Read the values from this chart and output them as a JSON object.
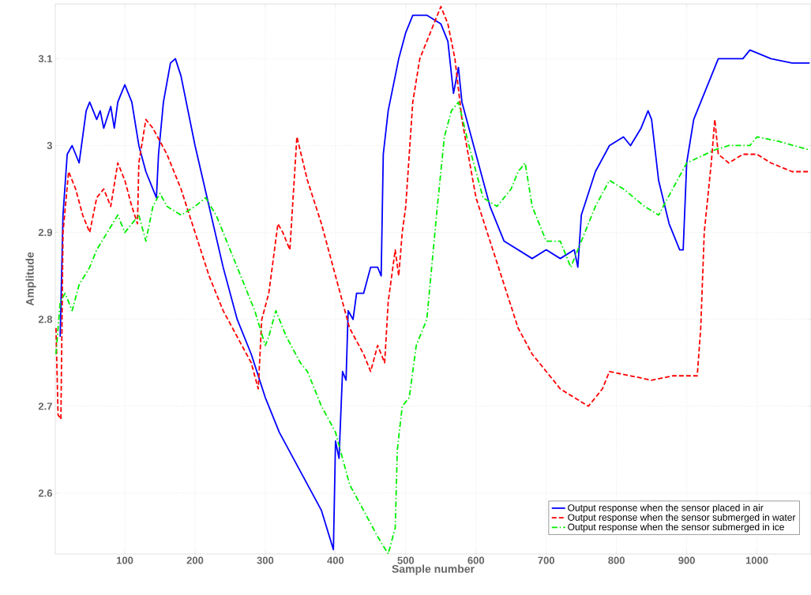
{
  "chart_data": {
    "type": "line",
    "xlabel": "Sample number",
    "ylabel": "Amplitude",
    "xlim": [
      1,
      1077
    ],
    "ylim": [
      2.53,
      3.163
    ],
    "xticks": [
      100,
      200,
      300,
      400,
      500,
      600,
      700,
      800,
      900,
      1000
    ],
    "yticks": [
      2.6,
      2.7,
      2.8,
      2.9,
      3,
      3.1
    ],
    "grid": true,
    "legend": "bottom right",
    "marker": "none",
    "series": [
      {
        "name": "Output response when the sensor placed in air",
        "color": "#0000ff",
        "line_style": "solid",
        "x": [
          8,
          12,
          18,
          25,
          35,
          45,
          50,
          60,
          65,
          70,
          80,
          85,
          90,
          100,
          110,
          120,
          130,
          145,
          148,
          155,
          165,
          172,
          180,
          200,
          220,
          240,
          260,
          280,
          300,
          320,
          340,
          360,
          380,
          397,
          400,
          405,
          410,
          415,
          418,
          425,
          430,
          440,
          450,
          460,
          465,
          468,
          475,
          490,
          500,
          510,
          530,
          550,
          560,
          568,
          575,
          580,
          600,
          620,
          640,
          660,
          680,
          700,
          720,
          740,
          745,
          750,
          770,
          790,
          810,
          820,
          835,
          845,
          850,
          860,
          875,
          890,
          895,
          900,
          910,
          920,
          930,
          945,
          980,
          990,
          1020,
          1050,
          1075
        ],
        "values": [
          2.78,
          2.92,
          2.99,
          3.0,
          2.98,
          3.04,
          3.05,
          3.03,
          3.04,
          3.02,
          3.045,
          3.02,
          3.05,
          3.07,
          3.05,
          3.0,
          2.97,
          2.94,
          2.99,
          3.05,
          3.095,
          3.1,
          3.08,
          3.0,
          2.93,
          2.86,
          2.8,
          2.76,
          2.71,
          2.67,
          2.64,
          2.61,
          2.58,
          2.535,
          2.66,
          2.64,
          2.74,
          2.73,
          2.81,
          2.8,
          2.83,
          2.83,
          2.86,
          2.86,
          2.85,
          2.99,
          3.04,
          3.1,
          3.13,
          3.15,
          3.15,
          3.14,
          3.12,
          3.06,
          3.09,
          3.05,
          2.99,
          2.93,
          2.89,
          2.88,
          2.87,
          2.88,
          2.87,
          2.88,
          2.86,
          2.92,
          2.97,
          3.0,
          3.01,
          3.0,
          3.02,
          3.04,
          3.03,
          2.96,
          2.91,
          2.88,
          2.88,
          2.98,
          3.03,
          3.05,
          3.07,
          3.1,
          3.1,
          3.11,
          3.1,
          3.095,
          3.095
        ]
      },
      {
        "name": "Output response when the sensor submerged in water",
        "color": "#ff0000",
        "line_style": "dashed",
        "x": [
          2,
          5,
          9,
          12,
          20,
          30,
          40,
          50,
          60,
          70,
          80,
          90,
          100,
          110,
          118,
          120,
          130,
          140,
          160,
          180,
          200,
          220,
          240,
          260,
          280,
          290,
          295,
          305,
          318,
          325,
          335,
          345,
          360,
          380,
          400,
          420,
          440,
          450,
          460,
          470,
          475,
          485,
          490,
          495,
          500,
          505,
          510,
          520,
          540,
          550,
          560,
          570,
          580,
          600,
          620,
          640,
          660,
          680,
          700,
          720,
          740,
          760,
          770,
          780,
          790,
          820,
          850,
          880,
          915,
          920,
          925,
          935,
          940,
          945,
          960,
          980,
          1000,
          1020,
          1050,
          1075
        ],
        "values": [
          2.79,
          2.69,
          2.685,
          2.9,
          2.97,
          2.95,
          2.92,
          2.9,
          2.94,
          2.95,
          2.93,
          2.98,
          2.96,
          2.93,
          2.91,
          2.98,
          3.03,
          3.02,
          2.99,
          2.95,
          2.9,
          2.85,
          2.81,
          2.78,
          2.75,
          2.72,
          2.8,
          2.83,
          2.91,
          2.9,
          2.88,
          3.01,
          2.96,
          2.91,
          2.85,
          2.79,
          2.76,
          2.74,
          2.77,
          2.75,
          2.82,
          2.88,
          2.85,
          2.9,
          2.93,
          2.99,
          3.05,
          3.1,
          3.14,
          3.16,
          3.14,
          3.1,
          3.03,
          2.94,
          2.89,
          2.84,
          2.79,
          2.76,
          2.74,
          2.72,
          2.71,
          2.7,
          2.71,
          2.72,
          2.74,
          2.735,
          2.73,
          2.735,
          2.735,
          2.79,
          2.9,
          2.98,
          3.03,
          2.99,
          2.98,
          2.99,
          2.99,
          2.98,
          2.97,
          2.97
        ]
      },
      {
        "name": "Output response when the sensor submerged in ice",
        "color": "#00ee00",
        "line_style": "dashdot",
        "x": [
          2,
          8,
          15,
          25,
          35,
          50,
          60,
          75,
          90,
          100,
          110,
          120,
          130,
          140,
          150,
          160,
          180,
          200,
          215,
          230,
          250,
          270,
          285,
          300,
          305,
          315,
          330,
          350,
          360,
          370,
          380,
          400,
          420,
          440,
          460,
          475,
          485,
          488,
          495,
          505,
          515,
          530,
          545,
          555,
          565,
          575,
          590,
          610,
          630,
          650,
          660,
          670,
          680,
          700,
          720,
          735,
          750,
          770,
          790,
          810,
          840,
          860,
          880,
          900,
          940,
          960,
          990,
          1000,
          1030,
          1075
        ],
        "values": [
          2.76,
          2.82,
          2.83,
          2.81,
          2.84,
          2.86,
          2.88,
          2.9,
          2.92,
          2.9,
          2.91,
          2.92,
          2.89,
          2.93,
          2.945,
          2.93,
          2.92,
          2.93,
          2.94,
          2.92,
          2.88,
          2.84,
          2.81,
          2.77,
          2.78,
          2.81,
          2.78,
          2.75,
          2.74,
          2.72,
          2.7,
          2.67,
          2.61,
          2.58,
          2.55,
          2.53,
          2.56,
          2.65,
          2.7,
          2.71,
          2.77,
          2.8,
          2.93,
          3.01,
          3.04,
          3.05,
          3.0,
          2.94,
          2.93,
          2.95,
          2.97,
          2.98,
          2.93,
          2.89,
          2.89,
          2.86,
          2.89,
          2.93,
          2.96,
          2.95,
          2.93,
          2.92,
          2.95,
          2.98,
          2.995,
          3.0,
          3.0,
          3.01,
          3.005,
          2.995
        ]
      }
    ]
  }
}
